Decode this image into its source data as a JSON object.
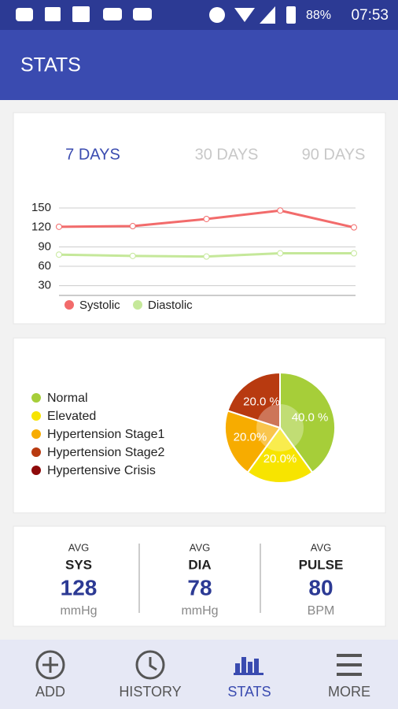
{
  "status_bar": {
    "battery": "88%",
    "time": "07:53"
  },
  "header": {
    "title": "STATS"
  },
  "tabs": {
    "items": [
      "7 DAYS",
      "30 DAYS",
      "90 DAYS"
    ],
    "active": 0
  },
  "line_chart": {
    "type": "line",
    "categories": [
      null,
      null,
      null,
      null,
      null
    ],
    "series": [
      {
        "name": "Systolic",
        "color": "#f26b6b",
        "values": [
          121,
          122,
          133,
          146,
          120
        ]
      },
      {
        "name": "Diastolic",
        "color": "#c5e89a",
        "values": [
          78,
          76,
          75,
          80,
          80
        ]
      }
    ],
    "ylim": [
      15,
      150
    ],
    "yticks": [
      30,
      60,
      90,
      120,
      150
    ],
    "grid": true
  },
  "pie_chart": {
    "type": "pie",
    "categories": [
      "Normal",
      "Elevated",
      "Hypertension Stage1",
      "Hypertension Stage2",
      "Hypertensive Crisis"
    ],
    "values": [
      40,
      20,
      20,
      20,
      0
    ],
    "value_labels": [
      "40.0 %",
      "20.0%",
      "20.0%",
      "20.0 %",
      null
    ],
    "colors": [
      "#a6ce39",
      "#f7e400",
      "#f7ac00",
      "#b83a10",
      "#8e0a0a"
    ]
  },
  "averages": [
    {
      "label": "AVG",
      "name": "SYS",
      "value": 128,
      "unit": "mmHg"
    },
    {
      "label": "AVG",
      "name": "DIA",
      "value": 78,
      "unit": "mmHg"
    },
    {
      "label": "AVG",
      "name": "PULSE",
      "value": 80,
      "unit": "BPM"
    }
  ],
  "nav": {
    "items": [
      "ADD",
      "HISTORY",
      "STATS",
      "MORE"
    ],
    "active": 2
  }
}
